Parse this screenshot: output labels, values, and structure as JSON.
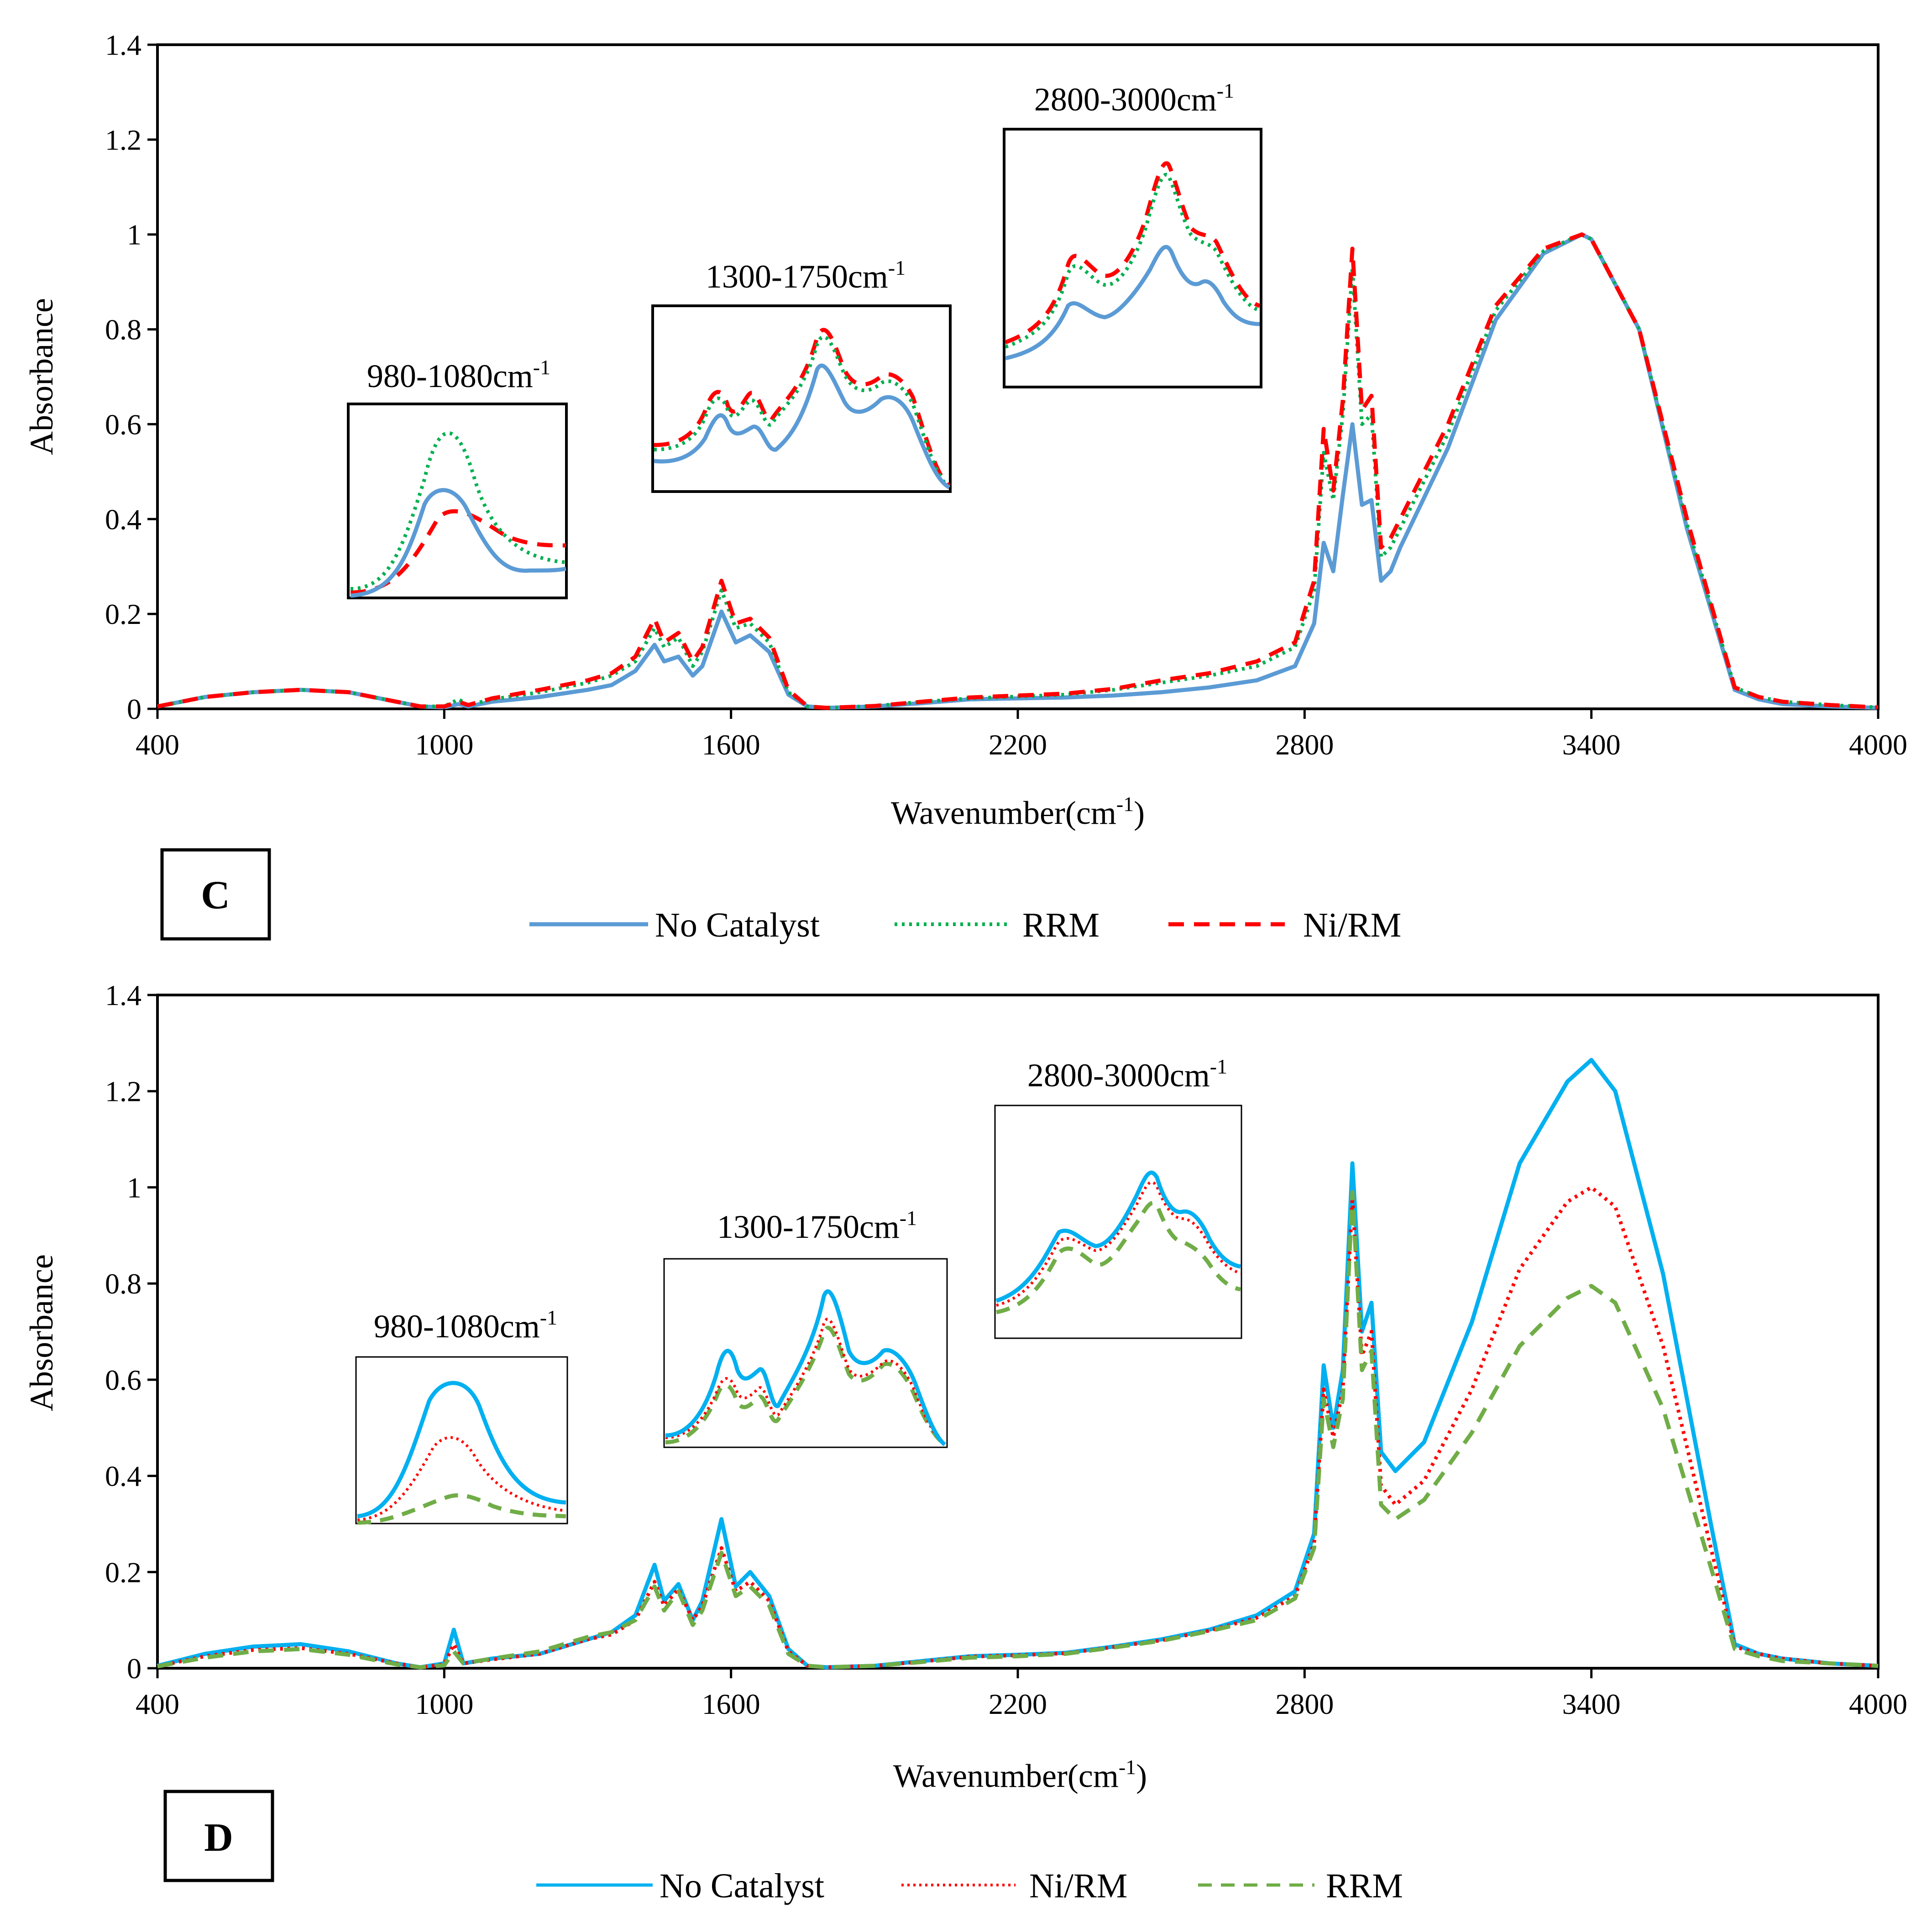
{
  "chart_data": [
    {
      "panel": "C",
      "type": "line",
      "xlabel": "Wavenumber(cm",
      "xlabel_sup": "-1",
      "xlabel_tail": ")",
      "ylabel": "Absorbance",
      "xlim": [
        400,
        4000
      ],
      "ylim": [
        0,
        1.4
      ],
      "xticks": [
        400,
        1000,
        1600,
        2200,
        2800,
        3400,
        4000
      ],
      "yticks": [
        0,
        0.2,
        0.4,
        0.6,
        0.8,
        1,
        1.2,
        1.4
      ],
      "xtick_labels": [
        "400",
        "1000",
        "1600",
        "2200",
        "2800",
        "3400",
        "4000"
      ],
      "ytick_labels": [
        "0",
        "0.2",
        "0.4",
        "0.6",
        "0.8",
        "1",
        "1.2",
        "1.4"
      ],
      "grid": false,
      "legend_position": "bottom",
      "legend": [
        "No Catalyst",
        "RRM",
        "Ni/RM"
      ],
      "insets": [
        {
          "label": "980-1080cm",
          "sup": "-1"
        },
        {
          "label": "1300-1750cm",
          "sup": "-1"
        },
        {
          "label": "2800-3000cm",
          "sup": "-1"
        }
      ],
      "series": [
        {
          "name": "No Catalyst",
          "color": "#5b9bd5",
          "style": "solid",
          "x": [
            400,
            500,
            600,
            700,
            800,
            900,
            950,
            1000,
            1030,
            1050,
            1100,
            1200,
            1300,
            1350,
            1400,
            1440,
            1460,
            1490,
            1520,
            1540,
            1580,
            1610,
            1640,
            1680,
            1720,
            1760,
            1800,
            1900,
            2000,
            2100,
            2200,
            2300,
            2400,
            2500,
            2600,
            2700,
            2780,
            2820,
            2840,
            2860,
            2880,
            2900,
            2920,
            2940,
            2960,
            2980,
            3000,
            3100,
            3200,
            3300,
            3380,
            3400,
            3500,
            3600,
            3700,
            3750,
            3800,
            3900,
            4000
          ],
          "y": [
            0.005,
            0.025,
            0.035,
            0.04,
            0.035,
            0.015,
            0.005,
            0.003,
            0.01,
            0.005,
            0.015,
            0.025,
            0.04,
            0.05,
            0.08,
            0.135,
            0.1,
            0.11,
            0.07,
            0.09,
            0.205,
            0.14,
            0.155,
            0.12,
            0.03,
            0.005,
            0.002,
            0.005,
            0.012,
            0.02,
            0.022,
            0.024,
            0.028,
            0.035,
            0.045,
            0.06,
            0.09,
            0.18,
            0.35,
            0.29,
            0.45,
            0.6,
            0.43,
            0.44,
            0.27,
            0.29,
            0.34,
            0.55,
            0.82,
            0.96,
            1.0,
            0.99,
            0.8,
            0.38,
            0.04,
            0.02,
            0.01,
            0.005,
            0.002
          ]
        },
        {
          "name": "RRM",
          "color": "#00b050",
          "style": "dotted",
          "x": [
            400,
            500,
            600,
            700,
            800,
            900,
            950,
            1000,
            1030,
            1050,
            1100,
            1200,
            1300,
            1350,
            1400,
            1440,
            1460,
            1490,
            1520,
            1540,
            1580,
            1610,
            1640,
            1680,
            1720,
            1760,
            1800,
            1900,
            2000,
            2100,
            2200,
            2300,
            2400,
            2500,
            2600,
            2700,
            2780,
            2820,
            2840,
            2860,
            2880,
            2900,
            2920,
            2940,
            2960,
            2980,
            3000,
            3100,
            3200,
            3300,
            3380,
            3400,
            3500,
            3600,
            3700,
            3750,
            3800,
            3900,
            4000
          ],
          "y": [
            0.005,
            0.025,
            0.035,
            0.04,
            0.035,
            0.015,
            0.005,
            0.005,
            0.02,
            0.008,
            0.02,
            0.035,
            0.055,
            0.07,
            0.1,
            0.17,
            0.13,
            0.15,
            0.09,
            0.12,
            0.25,
            0.17,
            0.18,
            0.14,
            0.035,
            0.005,
            0.002,
            0.006,
            0.015,
            0.022,
            0.026,
            0.03,
            0.04,
            0.055,
            0.07,
            0.09,
            0.13,
            0.25,
            0.54,
            0.44,
            0.62,
            0.93,
            0.6,
            0.62,
            0.32,
            0.34,
            0.38,
            0.58,
            0.84,
            0.965,
            1.0,
            0.99,
            0.8,
            0.39,
            0.045,
            0.025,
            0.015,
            0.008,
            0.003
          ]
        },
        {
          "name": "Ni/RM",
          "color": "#ff0000",
          "style": "dashed",
          "x": [
            400,
            500,
            600,
            700,
            800,
            900,
            950,
            1000,
            1030,
            1050,
            1100,
            1200,
            1300,
            1350,
            1400,
            1440,
            1460,
            1490,
            1520,
            1540,
            1580,
            1610,
            1640,
            1680,
            1720,
            1760,
            1800,
            1900,
            2000,
            2100,
            2200,
            2300,
            2400,
            2500,
            2600,
            2700,
            2780,
            2820,
            2840,
            2860,
            2880,
            2900,
            2920,
            2940,
            2960,
            2980,
            3000,
            3100,
            3200,
            3300,
            3380,
            3400,
            3500,
            3600,
            3700,
            3750,
            3800,
            3900,
            4000
          ],
          "y": [
            0.005,
            0.025,
            0.035,
            0.04,
            0.035,
            0.015,
            0.005,
            0.005,
            0.015,
            0.008,
            0.022,
            0.04,
            0.06,
            0.075,
            0.11,
            0.19,
            0.14,
            0.16,
            0.1,
            0.13,
            0.27,
            0.18,
            0.19,
            0.15,
            0.04,
            0.005,
            0.002,
            0.006,
            0.015,
            0.024,
            0.028,
            0.032,
            0.042,
            0.06,
            0.075,
            0.1,
            0.14,
            0.27,
            0.59,
            0.46,
            0.65,
            0.97,
            0.63,
            0.66,
            0.34,
            0.36,
            0.4,
            0.6,
            0.85,
            0.97,
            1.0,
            0.99,
            0.8,
            0.4,
            0.045,
            0.025,
            0.015,
            0.008,
            0.003
          ]
        }
      ]
    },
    {
      "panel": "D",
      "type": "line",
      "xlabel": "Wavenumber(cm",
      "xlabel_sup": "-1",
      "xlabel_tail": ")",
      "ylabel": "Absorbance",
      "xlim": [
        400,
        4000
      ],
      "ylim": [
        0,
        1.4
      ],
      "xticks": [
        400,
        1000,
        1600,
        2200,
        2800,
        3400,
        4000
      ],
      "yticks": [
        0,
        0.2,
        0.4,
        0.6,
        0.8,
        1,
        1.2,
        1.4
      ],
      "xtick_labels": [
        "400",
        "1000",
        "1600",
        "2200",
        "2800",
        "3400",
        "4000"
      ],
      "ytick_labels": [
        "0",
        "0.2",
        "0.4",
        "0.6",
        "0.8",
        "1",
        "1.2",
        "1.4"
      ],
      "grid": false,
      "legend_position": "bottom",
      "legend": [
        "No Catalyst",
        "Ni/RM",
        "RRM"
      ],
      "insets": [
        {
          "label": "980-1080cm",
          "sup": "-1"
        },
        {
          "label": "1300-1750cm",
          "sup": "-1"
        },
        {
          "label": "2800-3000cm",
          "sup": "-1"
        }
      ],
      "series": [
        {
          "name": "No Catalyst",
          "color": "#00b0f0",
          "style": "solid",
          "x": [
            400,
            500,
            600,
            700,
            800,
            900,
            950,
            1000,
            1020,
            1040,
            1100,
            1200,
            1300,
            1350,
            1400,
            1440,
            1460,
            1490,
            1520,
            1540,
            1580,
            1610,
            1640,
            1680,
            1720,
            1760,
            1800,
            1900,
            2000,
            2100,
            2200,
            2300,
            2400,
            2500,
            2600,
            2700,
            2780,
            2820,
            2840,
            2860,
            2880,
            2900,
            2920,
            2940,
            2960,
            2990,
            3050,
            3150,
            3250,
            3350,
            3400,
            3450,
            3550,
            3650,
            3700,
            3750,
            3800,
            3900,
            4000
          ],
          "y": [
            0.005,
            0.03,
            0.045,
            0.05,
            0.035,
            0.01,
            0.002,
            0.01,
            0.08,
            0.01,
            0.02,
            0.03,
            0.06,
            0.075,
            0.11,
            0.215,
            0.14,
            0.175,
            0.1,
            0.14,
            0.31,
            0.17,
            0.2,
            0.15,
            0.04,
            0.005,
            0.002,
            0.005,
            0.015,
            0.025,
            0.028,
            0.032,
            0.045,
            0.06,
            0.08,
            0.11,
            0.16,
            0.28,
            0.63,
            0.5,
            0.62,
            1.05,
            0.7,
            0.76,
            0.45,
            0.41,
            0.47,
            0.72,
            1.05,
            1.22,
            1.265,
            1.2,
            0.82,
            0.3,
            0.05,
            0.03,
            0.02,
            0.01,
            0.005
          ]
        },
        {
          "name": "Ni/RM",
          "color": "#ff0000",
          "style": "dotted",
          "x": [
            400,
            500,
            600,
            700,
            800,
            900,
            950,
            1000,
            1020,
            1040,
            1100,
            1200,
            1300,
            1350,
            1400,
            1440,
            1460,
            1490,
            1520,
            1540,
            1580,
            1610,
            1640,
            1680,
            1720,
            1760,
            1800,
            1900,
            2000,
            2100,
            2200,
            2300,
            2400,
            2500,
            2600,
            2700,
            2780,
            2820,
            2840,
            2860,
            2880,
            2900,
            2920,
            2940,
            2960,
            2990,
            3050,
            3150,
            3250,
            3350,
            3400,
            3450,
            3550,
            3650,
            3700,
            3750,
            3800,
            3900,
            4000
          ],
          "y": [
            0.004,
            0.025,
            0.038,
            0.042,
            0.03,
            0.01,
            0.002,
            0.008,
            0.05,
            0.01,
            0.018,
            0.03,
            0.06,
            0.07,
            0.1,
            0.18,
            0.13,
            0.165,
            0.1,
            0.13,
            0.25,
            0.16,
            0.18,
            0.14,
            0.035,
            0.005,
            0.002,
            0.005,
            0.014,
            0.024,
            0.027,
            0.031,
            0.044,
            0.058,
            0.078,
            0.105,
            0.15,
            0.26,
            0.58,
            0.48,
            0.58,
            0.98,
            0.65,
            0.7,
            0.38,
            0.34,
            0.39,
            0.58,
            0.83,
            0.97,
            1.0,
            0.96,
            0.67,
            0.25,
            0.045,
            0.03,
            0.02,
            0.01,
            0.005
          ]
        },
        {
          "name": "RRM",
          "color": "#70ad47",
          "style": "dashed",
          "x": [
            400,
            500,
            600,
            700,
            800,
            900,
            950,
            1000,
            1020,
            1040,
            1100,
            1200,
            1300,
            1350,
            1400,
            1440,
            1460,
            1490,
            1520,
            1540,
            1580,
            1610,
            1640,
            1680,
            1720,
            1760,
            1800,
            1900,
            2000,
            2100,
            2200,
            2300,
            2400,
            2500,
            2600,
            2700,
            2780,
            2820,
            2840,
            2860,
            2880,
            2900,
            2920,
            2940,
            2960,
            2990,
            3050,
            3150,
            3250,
            3350,
            3400,
            3450,
            3550,
            3650,
            3700,
            3750,
            3800,
            3900,
            4000
          ],
          "y": [
            0.004,
            0.022,
            0.035,
            0.04,
            0.028,
            0.008,
            0.002,
            0.006,
            0.035,
            0.01,
            0.02,
            0.035,
            0.065,
            0.075,
            0.1,
            0.17,
            0.12,
            0.16,
            0.09,
            0.12,
            0.24,
            0.15,
            0.17,
            0.13,
            0.03,
            0.005,
            0.002,
            0.005,
            0.013,
            0.022,
            0.025,
            0.03,
            0.043,
            0.057,
            0.077,
            0.1,
            0.145,
            0.25,
            0.56,
            0.46,
            0.56,
            0.99,
            0.62,
            0.66,
            0.34,
            0.31,
            0.35,
            0.49,
            0.67,
            0.77,
            0.795,
            0.76,
            0.54,
            0.21,
            0.04,
            0.025,
            0.015,
            0.01,
            0.005
          ]
        }
      ]
    }
  ],
  "panels": {
    "C": {
      "tag": "C"
    },
    "D": {
      "tag": "D"
    }
  }
}
